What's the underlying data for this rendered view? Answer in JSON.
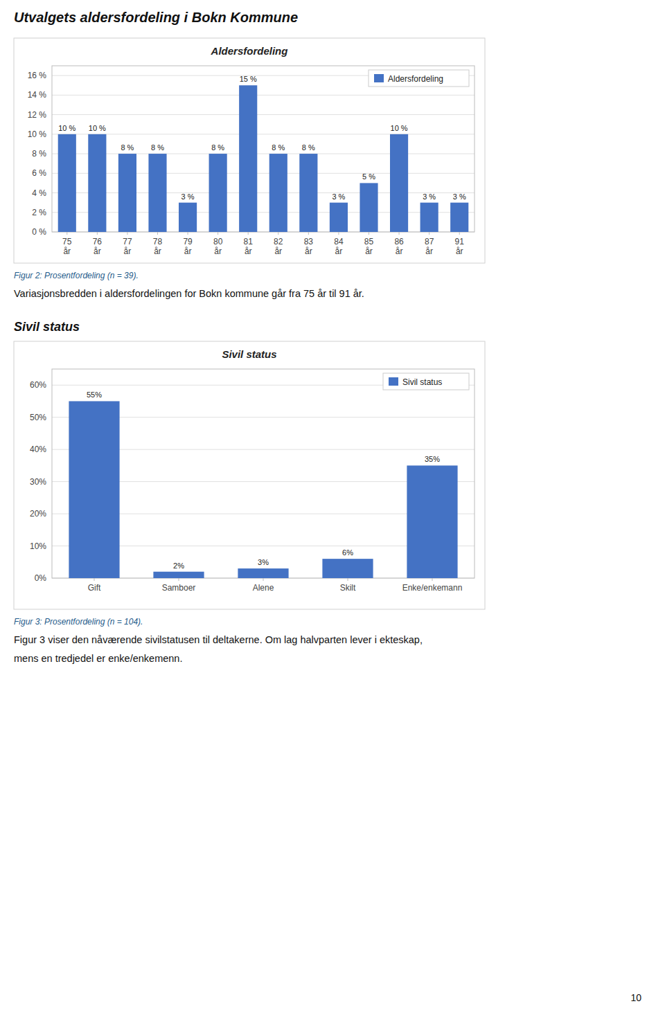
{
  "title": "Utvalgets aldersfordeling i Bokn Kommune",
  "page_number": "10",
  "chart_data": [
    {
      "type": "bar",
      "title": "Aldersfordeling",
      "categories": [
        "75\når",
        "76\når",
        "77\når",
        "78\når",
        "79\når",
        "80\når",
        "81\når",
        "82\når",
        "83\når",
        "84\når",
        "85\når",
        "86\når",
        "87\når",
        "91\når"
      ],
      "series": [
        {
          "name": "Aldersfordeling",
          "color": "#4472C4",
          "values": [
            10,
            10,
            8,
            8,
            3,
            8,
            15,
            8,
            8,
            3,
            5,
            10,
            3,
            3
          ],
          "value_labels": [
            "10 %",
            "10 %",
            "8 %",
            "8 %",
            "3 %",
            "8 %",
            "15 %",
            "8 %",
            "8 %",
            "3 %",
            "5 %",
            "10 %",
            "3 %",
            "3 %"
          ]
        }
      ],
      "ylim": [
        0,
        17
      ],
      "yticks": [
        {
          "value": 0,
          "label": "0 %"
        },
        {
          "value": 2,
          "label": "2 %"
        },
        {
          "value": 4,
          "label": "4 %"
        },
        {
          "value": 6,
          "label": "6 %"
        },
        {
          "value": 8,
          "label": "8 %"
        },
        {
          "value": 10,
          "label": "10 %"
        },
        {
          "value": 12,
          "label": "12 %"
        },
        {
          "value": 14,
          "label": "14 %"
        },
        {
          "value": 16,
          "label": "16 %"
        }
      ],
      "grid": true,
      "legend": "upper right",
      "data_labels": true,
      "caption": "Figur 2: Prosentfordeling (n = 39).",
      "text": [
        "Variasjonsbredden i aldersfordelingen for Bokn kommune går fra 75 år til 91 år."
      ]
    },
    {
      "type": "bar",
      "heading": "Sivil status",
      "title": "Sivil status",
      "categories": [
        "Gift",
        "Samboer",
        "Alene",
        "Skilt",
        "Enke/enkemann"
      ],
      "series": [
        {
          "name": "Sivil status",
          "color": "#4472C4",
          "values": [
            55,
            2,
            3,
            6,
            35
          ],
          "value_labels": [
            "55%",
            "2%",
            "3%",
            "6%",
            "35%"
          ]
        }
      ],
      "ylim": [
        0,
        65
      ],
      "yticks": [
        {
          "value": 0,
          "label": "0%"
        },
        {
          "value": 10,
          "label": "10%"
        },
        {
          "value": 20,
          "label": "20%"
        },
        {
          "value": 30,
          "label": "30%"
        },
        {
          "value": 40,
          "label": "40%"
        },
        {
          "value": 50,
          "label": "50%"
        },
        {
          "value": 60,
          "label": "60%"
        }
      ],
      "grid": true,
      "legend": "upper right",
      "data_labels": true,
      "caption": "Figur 3: Prosentfordeling (n = 104).",
      "text": [
        "Figur 3 viser den nåværende sivilstatusen til deltakerne. Om lag halvparten lever i ekteskap,",
        "mens en tredjedel er enke/enkemenn."
      ]
    }
  ]
}
